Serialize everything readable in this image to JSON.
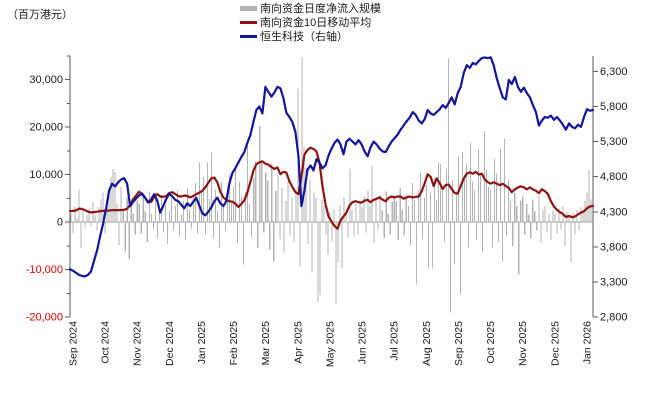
{
  "title": {
    "unit_label": "（百万港元）"
  },
  "legend": [
    {
      "label": "南向资金日度净流入规模",
      "type": "bar",
      "color": "#b3b3b3"
    },
    {
      "label": "南向资金10日移动平均",
      "type": "line",
      "color": "#8e1212"
    },
    {
      "label": "恒生科技（右轴）",
      "type": "line",
      "color": "#14149b"
    }
  ],
  "colors": {
    "bar": "#b3b3b3",
    "ma_line": "#8e1212",
    "index_line": "#14149b",
    "axis": "#595959",
    "zero_line": "#a6a6a6",
    "tick_label": "#1a1a1a",
    "negative_tick_label": "#eb0000"
  },
  "chart_data": {
    "type": "combo-bar-line",
    "x_axis": {
      "tick_labels": [
        "Sep 2024",
        "Oct 2024",
        "Nov 2024",
        "Dec 2024",
        "Jan 2025",
        "Feb 2025",
        "Mar 2025",
        "Apr 2025",
        "May 2025",
        "Jun 2025",
        "Jul 2025",
        "Aug 2025",
        "Sep 2025",
        "Oct 2025",
        "Nov 2025",
        "Dec 2025",
        "Jan 2026"
      ]
    },
    "left_axis": {
      "unit": "百万港元",
      "min": -20000,
      "max": 35000,
      "major_step": 10000,
      "minor_step": 5000,
      "tick_labels": [
        "30,000",
        "20,000",
        "10,000",
        "0",
        "-10,000",
        "-20,000"
      ],
      "grid": false
    },
    "right_axis": {
      "min": 2800,
      "max": 6520,
      "step": 500,
      "tick_labels": [
        "6,300",
        "5,800",
        "5,300",
        "4,800",
        "4,300",
        "3,800",
        "3,300",
        "2,800"
      ],
      "grid": false
    },
    "series": [
      {
        "name": "南向资金日度净流入规模",
        "type": "bar",
        "axis": "left",
        "values": [
          1800,
          -2400,
          3400,
          900,
          6900,
          -5500,
          2200,
          -1200,
          1600,
          2800,
          -900,
          4200,
          1400,
          -1800,
          3200,
          4800,
          6200,
          -2400,
          4200,
          6800,
          9500,
          11200,
          10600,
          3800,
          -4800,
          7400,
          2600,
          -6200,
          5200,
          -7800,
          3400,
          1800,
          -2600,
          4600,
          3800,
          -2400,
          5600,
          2200,
          -4200,
          6400,
          1800,
          -1600,
          4800,
          -3400,
          2800,
          5800,
          -2200,
          3600,
          -4600,
          2400,
          5200,
          -1800,
          3400,
          6800,
          -2800,
          1600,
          4400,
          -3800,
          7200,
          2600,
          -1400,
          5400,
          8200,
          -2400,
          12600,
          6200,
          9400,
          -2600,
          12600,
          4800,
          14700,
          -3400,
          6800,
          2400,
          -5200,
          8600,
          3200,
          -1800,
          5600,
          9800,
          4200,
          7400,
          11200,
          -4400,
          8600,
          5400,
          -8900,
          6200,
          16200,
          3800,
          -3200,
          9400,
          12800,
          -5400,
          20300,
          12600,
          -2200,
          10400,
          8800,
          -5800,
          12400,
          -8300,
          6600,
          9800,
          -3600,
          7200,
          -6400,
          4400,
          8600,
          -2800,
          5200,
          -4200,
          6800,
          28200,
          -9400,
          34800,
          15800,
          11400,
          -4600,
          8800,
          -10600,
          6200,
          5200,
          -16800,
          -15400,
          4800,
          3400,
          -2600,
          -6800,
          2200,
          -4200,
          2800,
          -17200,
          -8400,
          3600,
          -9800,
          5200,
          1800,
          -3200,
          11300,
          2600,
          -3000,
          3800,
          -2600,
          4600,
          3200,
          5400,
          -2200,
          6800,
          3400,
          11800,
          -4400,
          4800,
          -1600,
          5800,
          2400,
          -3400,
          6400,
          1800,
          -2600,
          4200,
          5600,
          4400,
          -3800,
          7200,
          2600,
          -2800,
          5800,
          3400,
          -4800,
          8200,
          4600,
          -13200,
          6800,
          10400,
          -3600,
          5200,
          7800,
          -9600,
          6200,
          -9800,
          9400,
          4800,
          12600,
          12200,
          6800,
          -4200,
          11200,
          34500,
          -19000,
          8800,
          -8800,
          6400,
          13800,
          -15200,
          14800,
          9200,
          12400,
          -5400,
          16800,
          8600,
          6800,
          -3800,
          15400,
          9800,
          -6200,
          19200,
          11200,
          7400,
          6800,
          -5400,
          13400,
          10200,
          -4200,
          15400,
          -8300,
          17500,
          -2800,
          8800,
          4400,
          -5000,
          6200,
          3400,
          -11000,
          4600,
          5400,
          -2600,
          3800,
          1600,
          -3400,
          4800,
          2200,
          -1800,
          5600,
          -4400,
          2600,
          3400,
          -2200,
          1800,
          -3800,
          2400,
          1800,
          -2400,
          2800,
          -1600,
          3400,
          -5000,
          2200,
          1400,
          -8500,
          1800,
          -2600,
          2600,
          -1800,
          3200,
          2200,
          4400,
          6200,
          11000,
          4800
        ]
      },
      {
        "name": "南向资金10日移动平均",
        "type": "line",
        "axis": "left",
        "values": [
          2300,
          2350,
          2450,
          2850,
          2750,
          2500,
          2200,
          2050,
          2100,
          2200,
          2300,
          2350,
          2400,
          2450,
          2500,
          2550,
          2500,
          2550,
          2600,
          2800,
          3600,
          4800,
          5600,
          6400,
          5900,
          5100,
          4300,
          4250,
          5300,
          5900,
          5400,
          5300,
          5500,
          6100,
          6300,
          5900,
          5500,
          5400,
          5600,
          5500,
          5200,
          5500,
          5900,
          6200,
          6600,
          7300,
          8300,
          9200,
          9400,
          8400,
          6400,
          5200,
          4700,
          4400,
          4300,
          3900,
          3200,
          3800,
          4600,
          6200,
          8400,
          10800,
          12200,
          12600,
          12800,
          12300,
          12100,
          11600,
          11200,
          11500,
          10100,
          10600,
          10400,
          8600,
          7400,
          6300,
          5900,
          9500,
          14200,
          15200,
          15700,
          15400,
          14900,
          12500,
          7500,
          3800,
          1200,
          100,
          -800,
          -1400,
          300,
          1200,
          2000,
          3500,
          4200,
          4400,
          4200,
          4100,
          4500,
          4700,
          4200,
          4700,
          4900,
          5200,
          4700,
          4400,
          5100,
          5400,
          5200,
          5400,
          5400,
          4900,
          5200,
          5400,
          5200,
          5300,
          5400,
          6500,
          8200,
          10100,
          9500,
          7600,
          9200,
          8200,
          7000,
          7800,
          7900,
          7000,
          6100,
          6000,
          7600,
          9200,
          10200,
          10500,
          10200,
          10600,
          10000,
          10200,
          9000,
          8400,
          8100,
          8400,
          8100,
          7800,
          8100,
          7600,
          7200,
          6300,
          6900,
          7300,
          7550,
          7300,
          6900,
          7300,
          6900,
          6600,
          6100,
          6900,
          6500,
          5900,
          4400,
          3300,
          2600,
          2100,
          1700,
          1100,
          1300,
          1000,
          1200,
          1600,
          2000,
          2300,
          2900,
          3300,
          3400
        ]
      },
      {
        "name": "恒生科技",
        "type": "line",
        "axis": "right",
        "values": [
          3480,
          3460,
          3430,
          3400,
          3385,
          3380,
          3400,
          3450,
          3600,
          3750,
          3950,
          4130,
          4350,
          4600,
          4700,
          4660,
          4720,
          4760,
          4780,
          4700,
          4380,
          4440,
          4490,
          4530,
          4560,
          4500,
          4430,
          4480,
          4550,
          4460,
          4290,
          4380,
          4480,
          4560,
          4520,
          4470,
          4450,
          4400,
          4350,
          4420,
          4380,
          4440,
          4500,
          4390,
          4280,
          4250,
          4300,
          4360,
          4450,
          4500,
          4420,
          4380,
          4450,
          4700,
          4850,
          4920,
          5000,
          5080,
          5150,
          5280,
          5390,
          5580,
          5750,
          5800,
          5700,
          6080,
          6010,
          5940,
          6000,
          6080,
          6060,
          5920,
          5710,
          5650,
          5580,
          5440,
          5100,
          4380,
          4600,
          4900,
          4960,
          4890,
          5050,
          5000,
          4920,
          4960,
          5100,
          5200,
          5280,
          5330,
          5260,
          5120,
          5300,
          5340,
          5300,
          5260,
          5320,
          5260,
          5160,
          5090,
          5220,
          5300,
          5260,
          5200,
          5160,
          5150,
          5230,
          5300,
          5350,
          5400,
          5470,
          5530,
          5590,
          5640,
          5720,
          5680,
          5600,
          5560,
          5620,
          5750,
          5700,
          5680,
          5720,
          5760,
          5820,
          5780,
          5850,
          5930,
          5830,
          5990,
          6080,
          6280,
          6390,
          6350,
          6420,
          6400,
          6450,
          6490,
          6500,
          6490,
          6500,
          6380,
          6200,
          6060,
          5930,
          5900,
          6180,
          6120,
          6220,
          6080,
          6010,
          6070,
          5990,
          5930,
          5820,
          5720,
          5530,
          5600,
          5650,
          5640,
          5670,
          5610,
          5650,
          5600,
          5540,
          5470,
          5560,
          5510,
          5490,
          5540,
          5510,
          5650,
          5760,
          5740,
          5750
        ]
      }
    ]
  }
}
